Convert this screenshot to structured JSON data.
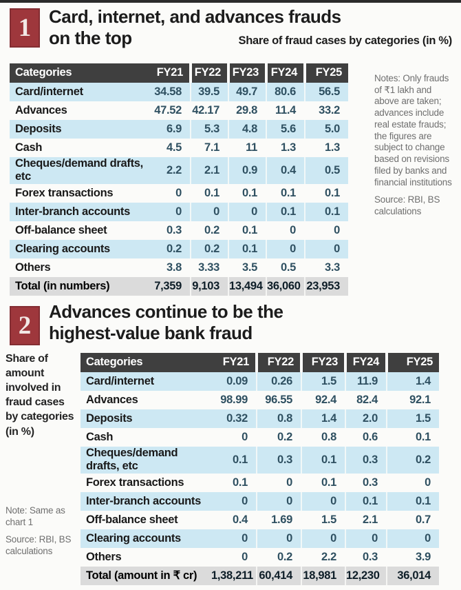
{
  "colors": {
    "accent_red": "#9e373c",
    "table_header_bg": "#3f3f3f",
    "stripe_blue": "#cde8f3",
    "total_row_bg": "#dbdbdb",
    "value_text": "#2f5061",
    "note_text": "#6f6f6f"
  },
  "chart1": {
    "number": "1",
    "title_line1": "Card, internet, and advances frauds",
    "title_line2": "on the top",
    "subtitle": "Share of fraud cases by categories (in %)",
    "notes": "Notes: Only frauds of ₹1 lakh and above are taken; advances include real estate frauds; the figures are subject to change based on revisions filed by banks and financial institutions",
    "source": "Source: RBI, BS calculations"
  },
  "chart2": {
    "number": "2",
    "title_line1": "Advances continue to be the",
    "title_line2": "highest-value bank fraud",
    "side_label": "Share of amount involved in fraud cases by categories (in %)",
    "note": "Note: Same as chart 1",
    "source": "Source: RBI, BS calculations"
  },
  "chart_data": [
    {
      "type": "table",
      "title": "Card, internet, and advances frauds on the top",
      "subtitle": "Share of fraud cases by categories (in %)",
      "columns": [
        "Categories",
        "FY21",
        "FY22",
        "FY23",
        "FY24",
        "FY25"
      ],
      "rows": [
        [
          "Card/internet",
          "34.58",
          "39.5",
          "49.7",
          "80.6",
          "56.5"
        ],
        [
          "Advances",
          "47.52",
          "42.17",
          "29.8",
          "11.4",
          "33.2"
        ],
        [
          "Deposits",
          "6.9",
          "5.3",
          "4.8",
          "5.6",
          "5.0"
        ],
        [
          "Cash",
          "4.5",
          "7.1",
          "11",
          "1.3",
          "1.3"
        ],
        [
          "Cheques/demand drafts, etc",
          "2.2",
          "2.1",
          "0.9",
          "0.4",
          "0.5"
        ],
        [
          "Forex transactions",
          "0",
          "0.1",
          "0.1",
          "0.1",
          "0.1"
        ],
        [
          "Inter-branch accounts",
          "0",
          "0",
          "0",
          "0.1",
          "0.1"
        ],
        [
          "Off-balance sheet",
          "0.3",
          "0.2",
          "0.1",
          "0",
          "0"
        ],
        [
          "Clearing accounts",
          "0.2",
          "0.2",
          "0.1",
          "0",
          "0"
        ],
        [
          "Others",
          "3.8",
          "3.33",
          "3.5",
          "0.5",
          "3.3"
        ]
      ],
      "total_row": [
        "Total (in numbers)",
        "7,359",
        "9,103",
        "13,494",
        "36,060",
        "23,953"
      ]
    },
    {
      "type": "table",
      "title": "Advances continue to be the highest-value bank fraud",
      "subtitle": "Share of amount involved in fraud cases by categories (in %)",
      "columns": [
        "Categories",
        "FY21",
        "FY22",
        "FY23",
        "FY24",
        "FY25"
      ],
      "rows": [
        [
          "Card/internet",
          "0.09",
          "0.26",
          "1.5",
          "11.9",
          "1.4"
        ],
        [
          "Advances",
          "98.99",
          "96.55",
          "92.4",
          "82.4",
          "92.1"
        ],
        [
          "Deposits",
          "0.32",
          "0.8",
          "1.4",
          "2.0",
          "1.5"
        ],
        [
          "Cash",
          "0",
          "0.2",
          "0.8",
          "0.6",
          "0.1"
        ],
        [
          "Cheques/demand drafts, etc",
          "0.1",
          "0.3",
          "0.1",
          "0.3",
          "0.2"
        ],
        [
          "Forex transactions",
          "0.1",
          "0",
          "0.1",
          "0.3",
          "0"
        ],
        [
          "Inter-branch accounts",
          "0",
          "0",
          "0",
          "0.1",
          "0.1"
        ],
        [
          "Off-balance sheet",
          "0.4",
          "1.69",
          "1.5",
          "2.1",
          "0.7"
        ],
        [
          "Clearing accounts",
          "0",
          "0",
          "0",
          "0",
          "0"
        ],
        [
          "Others",
          "0",
          "0.2",
          "2.2",
          "0.3",
          "3.9"
        ]
      ],
      "total_row": [
        "Total (amount in ₹ cr)",
        "1,38,211",
        "60,414",
        "18,981",
        "12,230",
        "36,014"
      ]
    }
  ]
}
